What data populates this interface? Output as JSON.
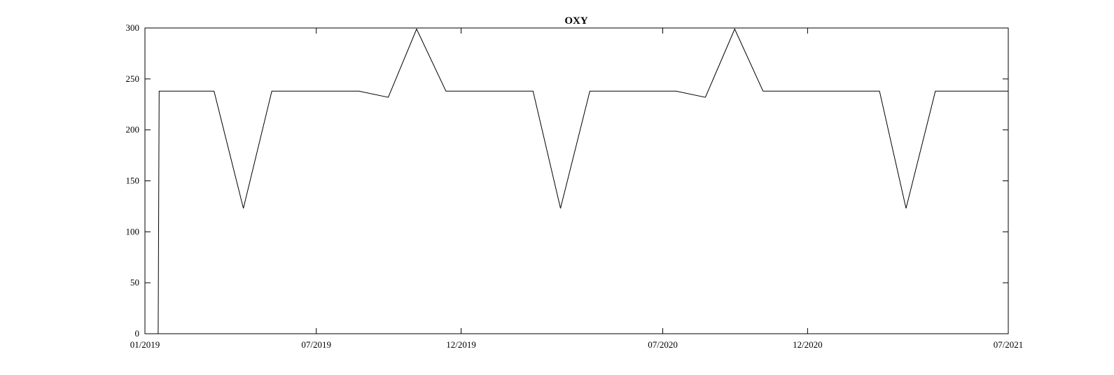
{
  "chart_data": {
    "type": "line",
    "title": "OXY",
    "xlabel": "",
    "ylabel": "",
    "grid": false,
    "xlim": [
      "2019-01-01",
      "2021-07-01"
    ],
    "ylim": [
      0,
      300
    ],
    "x_ticks": [
      "2019-01-01",
      "2019-07-01",
      "2019-12-01",
      "2020-07-01",
      "2020-12-01",
      "2021-07-01"
    ],
    "x_tick_labels": [
      "01/2019",
      "07/2019",
      "12/2019",
      "07/2020",
      "12/2020",
      "07/2021"
    ],
    "y_ticks": [
      0,
      50,
      100,
      150,
      200,
      250,
      300
    ],
    "y_tick_labels": [
      "0",
      "50",
      "100",
      "150",
      "200",
      "250",
      "300"
    ],
    "series": [
      {
        "x": [
          "2019-01-01",
          "2019-01-15",
          "2019-01-16",
          "2019-03-15",
          "2019-04-15",
          "2019-05-15",
          "2019-08-15",
          "2019-09-15",
          "2019-10-15",
          "2019-11-15",
          "2020-02-15",
          "2020-03-15",
          "2020-04-15",
          "2020-07-15",
          "2020-08-15",
          "2020-09-15",
          "2020-10-15",
          "2021-02-15",
          "2021-03-15",
          "2021-04-15",
          "2021-07-01"
        ],
        "y": [
          0,
          0,
          238,
          238,
          123,
          238,
          238,
          232,
          299,
          238,
          238,
          123,
          238,
          238,
          232,
          299,
          238,
          238,
          123,
          238,
          238
        ]
      }
    ]
  }
}
